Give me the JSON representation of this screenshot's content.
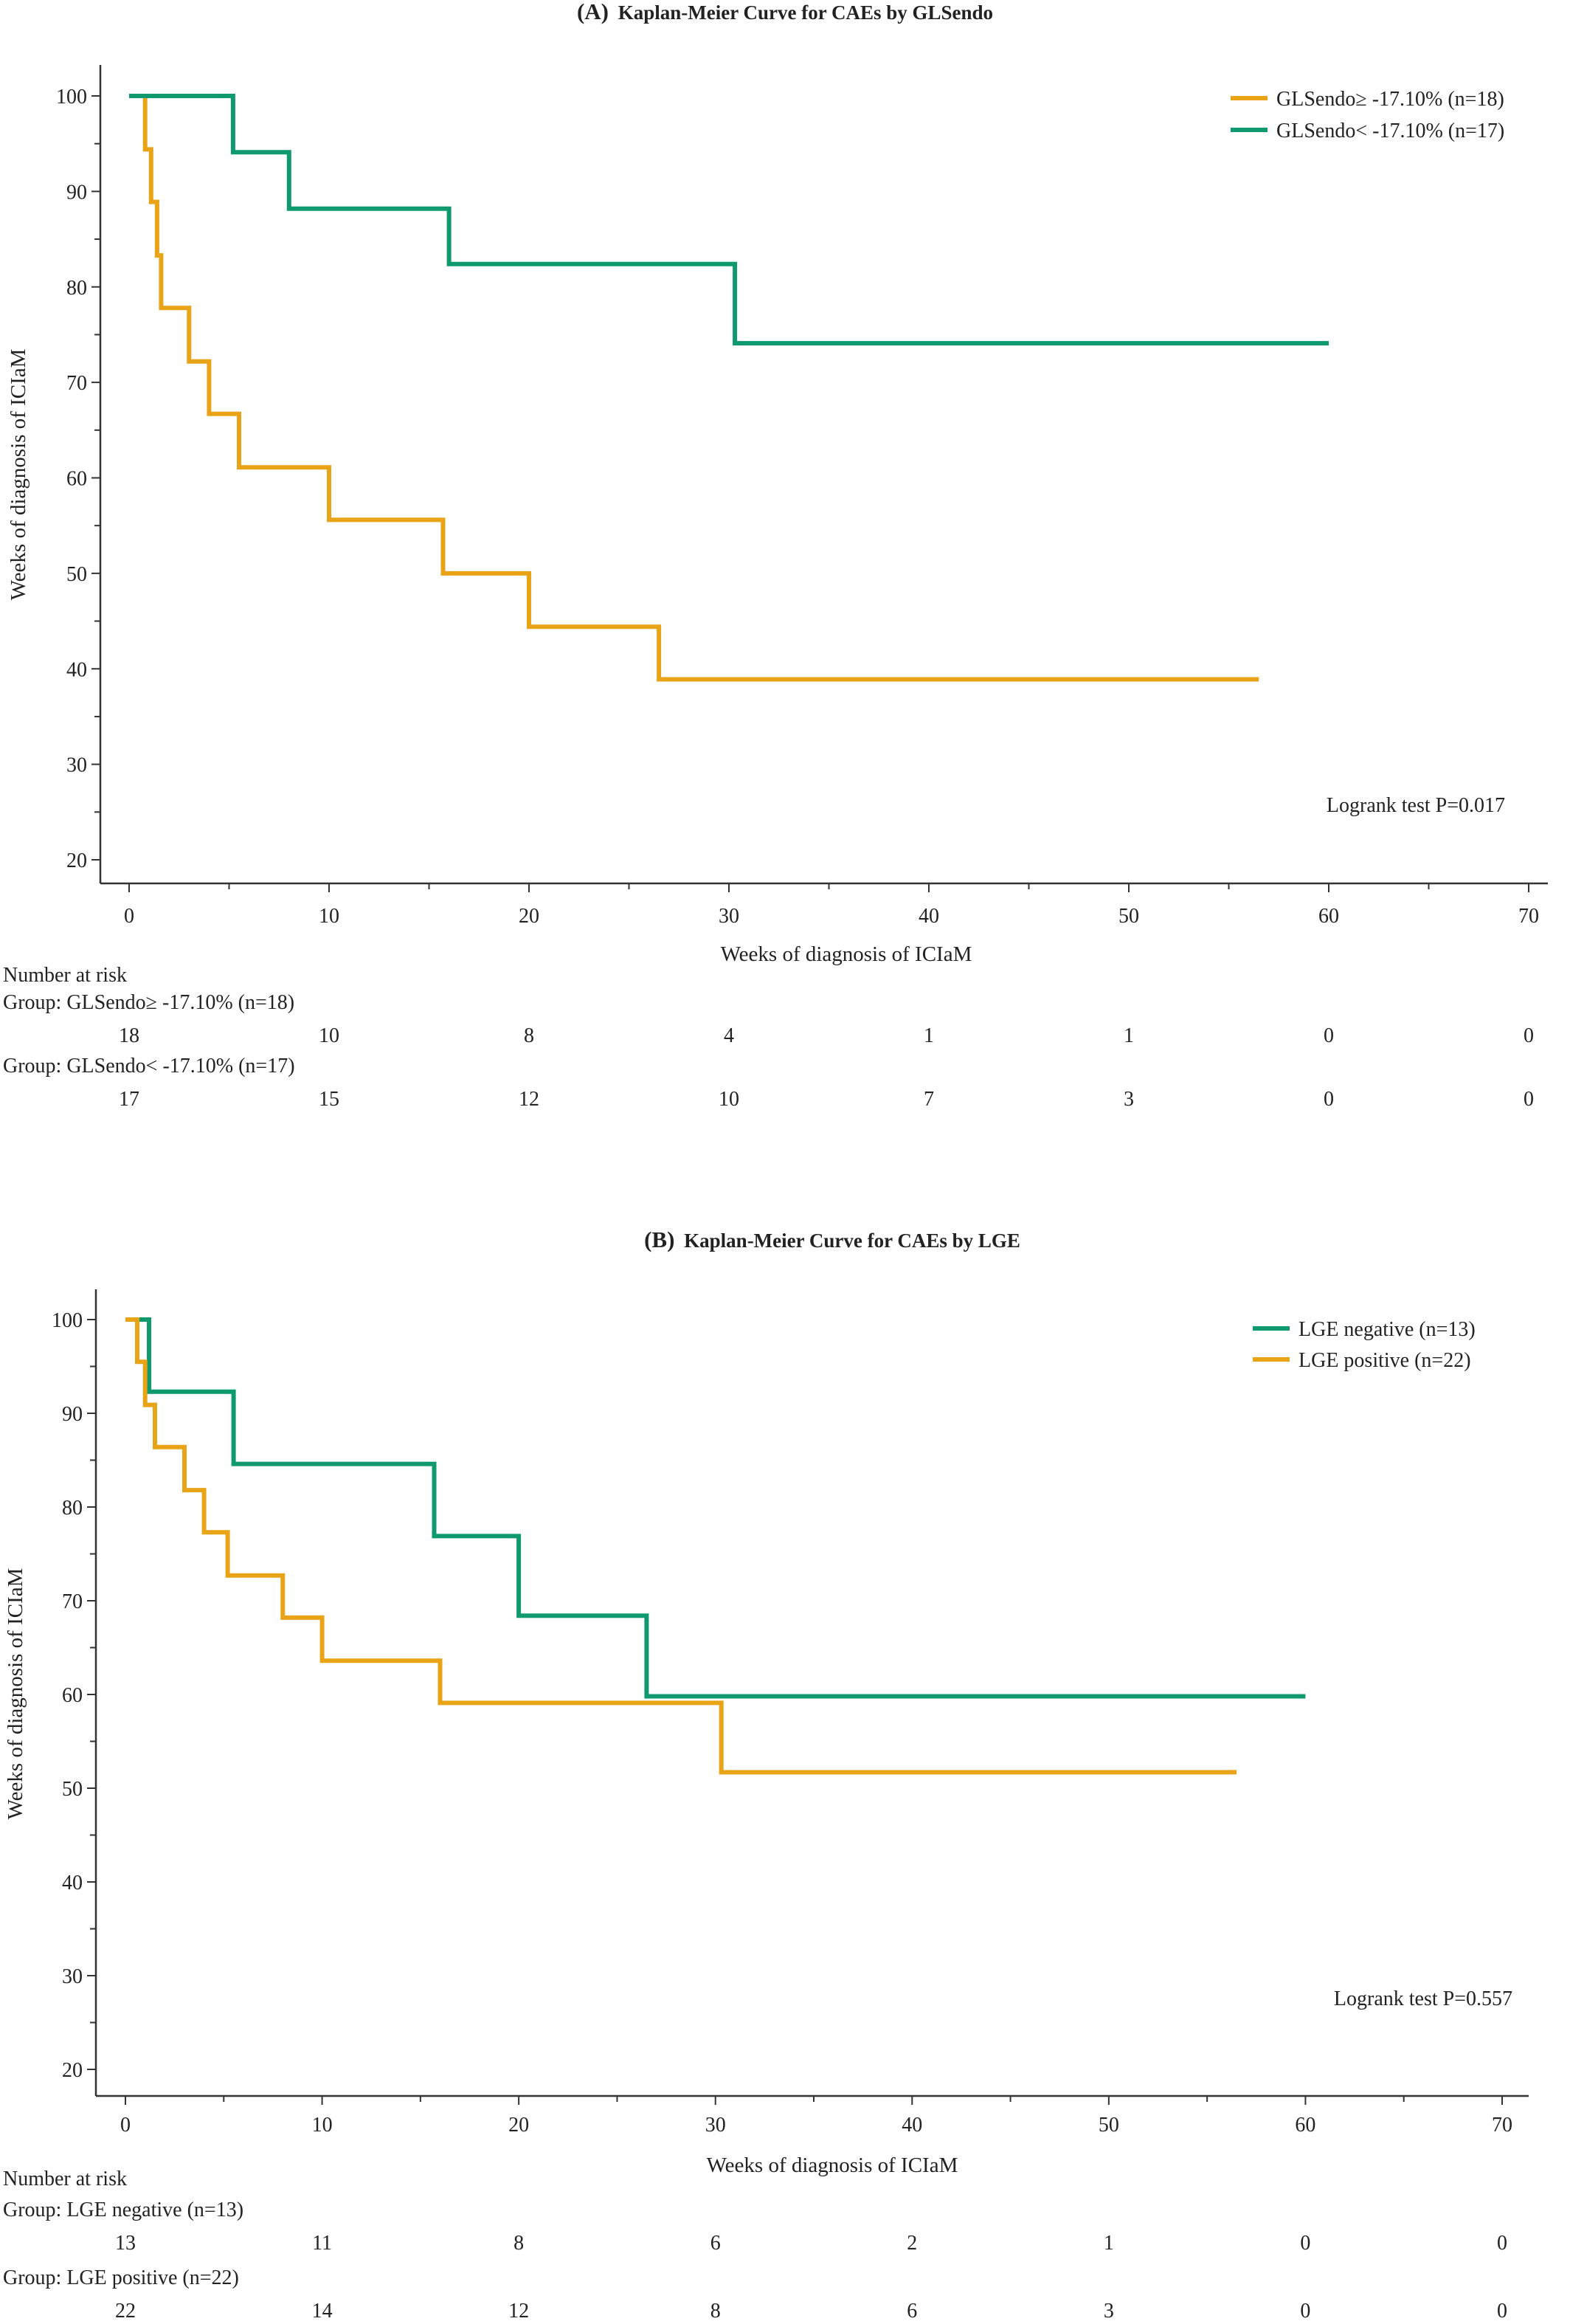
{
  "colors": {
    "orange": "#E8A317",
    "green": "#0E9A6E",
    "axis": "#333333",
    "text": "#222222"
  },
  "chart_data": [
    {
      "type": "line",
      "title_prefix": "(A)",
      "title": "Kaplan-Meier Curve for CAEs by GLSendo",
      "xlabel": "Weeks of diagnosis of ICIaM",
      "ylabel": "Weeks of diagnosis of ICIaM",
      "xlim": [
        0,
        70
      ],
      "ylim": [
        20,
        100
      ],
      "xticks": [
        0,
        10,
        20,
        30,
        40,
        50,
        60,
        70
      ],
      "yticks": [
        20,
        30,
        40,
        50,
        60,
        70,
        80,
        90,
        100
      ],
      "legend_position": "top-right",
      "annotation": "Logrank test P=0.017",
      "series": [
        {
          "name": "GLSendo≥ -17.10% (n=18)",
          "color": "#E8A317",
          "points": [
            [
              0,
              100
            ],
            [
              0.8,
              100
            ],
            [
              0.8,
              94.4
            ],
            [
              1.1,
              94.4
            ],
            [
              1.1,
              88.9
            ],
            [
              1.4,
              88.9
            ],
            [
              1.4,
              83.3
            ],
            [
              1.6,
              83.3
            ],
            [
              1.6,
              77.8
            ],
            [
              3,
              77.8
            ],
            [
              3,
              72.2
            ],
            [
              4,
              72.2
            ],
            [
              4,
              66.7
            ],
            [
              5.5,
              66.7
            ],
            [
              5.5,
              61.1
            ],
            [
              10,
              61.1
            ],
            [
              10,
              55.6
            ],
            [
              15.7,
              55.6
            ],
            [
              15.7,
              50
            ],
            [
              20,
              50
            ],
            [
              20,
              44.4
            ],
            [
              26.5,
              44.4
            ],
            [
              26.5,
              38.9
            ],
            [
              56.5,
              38.9
            ]
          ]
        },
        {
          "name": "GLSendo< -17.10% (n=17)",
          "color": "#0E9A6E",
          "points": [
            [
              0,
              100
            ],
            [
              5.2,
              100
            ],
            [
              5.2,
              94.1
            ],
            [
              8,
              94.1
            ],
            [
              8,
              88.2
            ],
            [
              16,
              88.2
            ],
            [
              16,
              82.4
            ],
            [
              30.3,
              82.4
            ],
            [
              30.3,
              74.1
            ],
            [
              60,
              74.1
            ]
          ]
        }
      ],
      "risk_table": {
        "header": "Number at risk",
        "x": [
          0,
          10,
          20,
          30,
          40,
          50,
          60,
          70
        ],
        "groups": [
          {
            "label": "Group: GLSendo≥ -17.10% (n=18)",
            "values": [
              18,
              10,
              8,
              4,
              1,
              1,
              0,
              0
            ]
          },
          {
            "label": "Group: GLSendo< -17.10% (n=17)",
            "values": [
              17,
              15,
              12,
              10,
              7,
              3,
              0,
              0
            ]
          }
        ]
      }
    },
    {
      "type": "line",
      "title_prefix": "(B)",
      "title": "Kaplan-Meier Curve for CAEs by LGE",
      "xlabel": "Weeks of diagnosis of ICIaM",
      "ylabel": "Weeks of diagnosis of ICIaM",
      "xlim": [
        0,
        70
      ],
      "ylim": [
        20,
        100
      ],
      "xticks": [
        0,
        10,
        20,
        30,
        40,
        50,
        60,
        70
      ],
      "yticks": [
        20,
        30,
        40,
        50,
        60,
        70,
        80,
        90,
        100
      ],
      "legend_position": "top-right",
      "annotation": "Logrank test P=0.557",
      "series": [
        {
          "name": "LGE negative (n=13)",
          "color": "#0E9A6E",
          "points": [
            [
              0,
              100
            ],
            [
              1.2,
              100
            ],
            [
              1.2,
              92.3
            ],
            [
              5.5,
              92.3
            ],
            [
              5.5,
              84.6
            ],
            [
              15.7,
              84.6
            ],
            [
              15.7,
              76.9
            ],
            [
              20,
              76.9
            ],
            [
              20,
              68.4
            ],
            [
              26.5,
              68.4
            ],
            [
              26.5,
              59.8
            ],
            [
              60,
              59.8
            ]
          ]
        },
        {
          "name": "LGE positive (n=22)",
          "color": "#E8A317",
          "points": [
            [
              0,
              100
            ],
            [
              0.6,
              100
            ],
            [
              0.6,
              95.5
            ],
            [
              1,
              95.5
            ],
            [
              1,
              90.9
            ],
            [
              1.5,
              90.9
            ],
            [
              1.5,
              86.4
            ],
            [
              3,
              86.4
            ],
            [
              3,
              81.8
            ],
            [
              4,
              81.8
            ],
            [
              4,
              77.3
            ],
            [
              5.2,
              77.3
            ],
            [
              5.2,
              72.7
            ],
            [
              8,
              72.7
            ],
            [
              8,
              68.2
            ],
            [
              10,
              68.2
            ],
            [
              10,
              63.6
            ],
            [
              16,
              63.6
            ],
            [
              16,
              59.1
            ],
            [
              30.3,
              59.1
            ],
            [
              30.3,
              51.7
            ],
            [
              56.5,
              51.7
            ]
          ]
        }
      ],
      "risk_table": {
        "header": "Number at risk",
        "x": [
          0,
          10,
          20,
          30,
          40,
          50,
          60,
          70
        ],
        "groups": [
          {
            "label": "Group: LGE negative (n=13)",
            "values": [
              13,
              11,
              8,
              6,
              2,
              1,
              0,
              0
            ]
          },
          {
            "label": "Group: LGE positive (n=22)",
            "values": [
              22,
              14,
              12,
              8,
              6,
              3,
              0,
              0
            ]
          }
        ]
      }
    }
  ]
}
